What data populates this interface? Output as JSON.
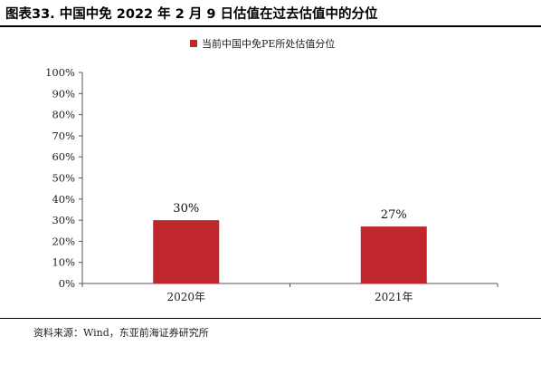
{
  "title": "图表33. 中国中免 2022 年 2 月 9 日估值在过去估值中的分位",
  "source": "资料来源：Wind，东亚前海证券研究所",
  "colors": {
    "bar": "#c0272d"
  },
  "chart_data": {
    "type": "bar",
    "categories": [
      "2020年",
      "2021年"
    ],
    "series": [
      {
        "name": "当前中国中免PE所处估值分位",
        "values": [
          30,
          27
        ]
      }
    ],
    "data_labels": [
      "30%",
      "27%"
    ],
    "ylim": [
      0,
      100
    ],
    "yticks": [
      0,
      10,
      20,
      30,
      40,
      50,
      60,
      70,
      80,
      90,
      100
    ],
    "ytick_labels": [
      "0%",
      "10%",
      "20%",
      "30%",
      "40%",
      "50%",
      "60%",
      "70%",
      "80%",
      "90%",
      "100%"
    ],
    "grid": false,
    "legend": "top-center"
  }
}
